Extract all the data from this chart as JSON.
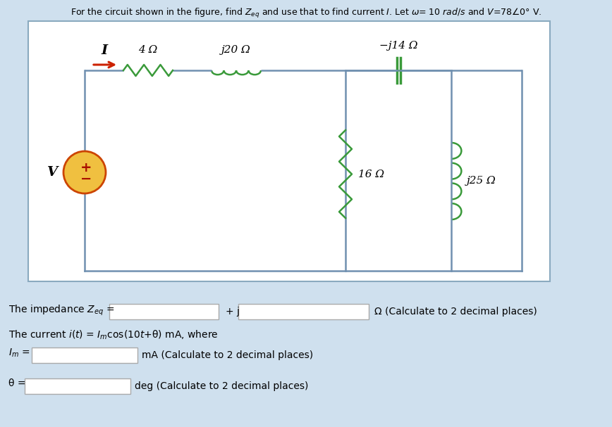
{
  "title": "For the circuit shown in the figure, find $Z_{eq}$ and use that to find current $I$. Let $\\omega$= 10 $rad/s$ and $V$=78$\\angle$0° V.",
  "bg_color": "#cfe0ee",
  "circuit_bg": "#ffffff",
  "circuit_border": "#8aaabf",
  "green_color": "#3a9a3a",
  "arrow_color": "#cc2200",
  "vs_edge_color": "#cc4400",
  "vs_face_color": "#f0c040",
  "wire_color": "#7090b0",
  "text_color": "#000000",
  "label_4ohm": "4 Ω",
  "label_j20ohm": "j20 Ω",
  "label_neg_j14ohm": "−j14 Ω",
  "label_16ohm": "16 Ω",
  "label_j25ohm": "j25 Ω",
  "label_I": "I",
  "label_V": "V",
  "impedance_label": "The impedance $Z_{eq}$ =",
  "impedance_plus_j": "+ j",
  "impedance_unit": "Ω (Calculate to 2 decimal places)",
  "current_label": "The current $i(t)$ = $I_m$cos(10$t$+θ) mA, where",
  "Im_label": "$I_m$ =",
  "Im_unit": "mA (Calculate to 2 decimal places)",
  "theta_label": "θ =",
  "theta_unit": "deg (Calculate to 2 decimal places)"
}
